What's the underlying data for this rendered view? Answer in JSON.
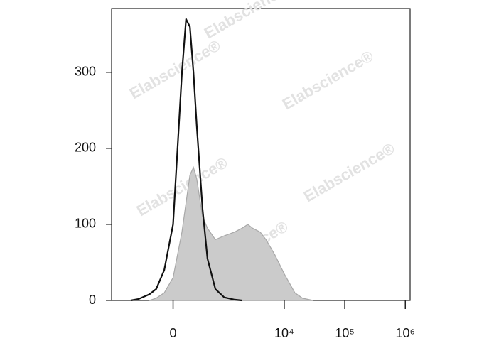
{
  "chart_data": {
    "type": "histogram-line",
    "watermark": "Elabscience®",
    "xscale": "biexponential",
    "xlim": [
      -1500,
      1200000
    ],
    "ylim": [
      0,
      384
    ],
    "xticks": [
      0,
      {
        "value": 10000,
        "label": "10⁴"
      },
      {
        "value": 100000,
        "label": "10⁵"
      },
      {
        "value": 1000000,
        "label": "10⁶"
      }
    ],
    "yticks": [
      0,
      100,
      200,
      300
    ],
    "series": [
      {
        "color": "#a8a8a8",
        "fill": "#cbcbcb",
        "x": [
          -300,
          -200,
          -100,
          0,
          100,
          200,
          250,
          300,
          400,
          500,
          700,
          1000,
          1500,
          2000,
          2500,
          3000,
          4000,
          5000,
          7000,
          10000,
          15000,
          20000,
          30000
        ],
        "values": [
          0,
          3,
          10,
          30,
          90,
          165,
          175,
          160,
          110,
          95,
          80,
          85,
          90,
          95,
          100,
          95,
          90,
          80,
          60,
          35,
          10,
          3,
          0
        ]
      },
      {
        "color": "#111111",
        "x": [
          -700,
          -500,
          -300,
          -200,
          -100,
          0,
          50,
          100,
          150,
          200,
          250,
          300,
          400,
          500,
          700,
          1000,
          1500,
          2000
        ],
        "values": [
          0,
          2,
          8,
          15,
          40,
          100,
          200,
          300,
          370,
          360,
          300,
          230,
          120,
          55,
          15,
          4,
          1,
          0
        ]
      }
    ]
  }
}
